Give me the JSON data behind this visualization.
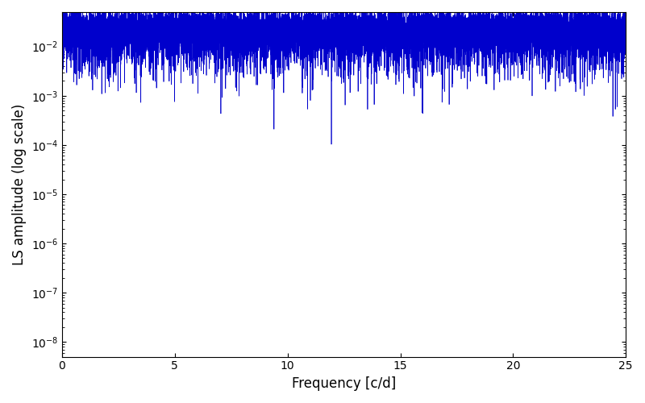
{
  "xlabel": "Frequency [c/d]",
  "ylabel": "LS amplitude (log scale)",
  "xlim": [
    0,
    25
  ],
  "ylim": [
    5e-09,
    0.05
  ],
  "line_color": "#0000cc",
  "line_width": 0.5,
  "freq_max": 25.0,
  "n_points": 20000,
  "seed": 42,
  "background_color": "#ffffff",
  "figsize": [
    8.0,
    5.0
  ],
  "dpi": 100,
  "xticks": [
    0,
    5,
    10,
    15,
    20,
    25
  ]
}
